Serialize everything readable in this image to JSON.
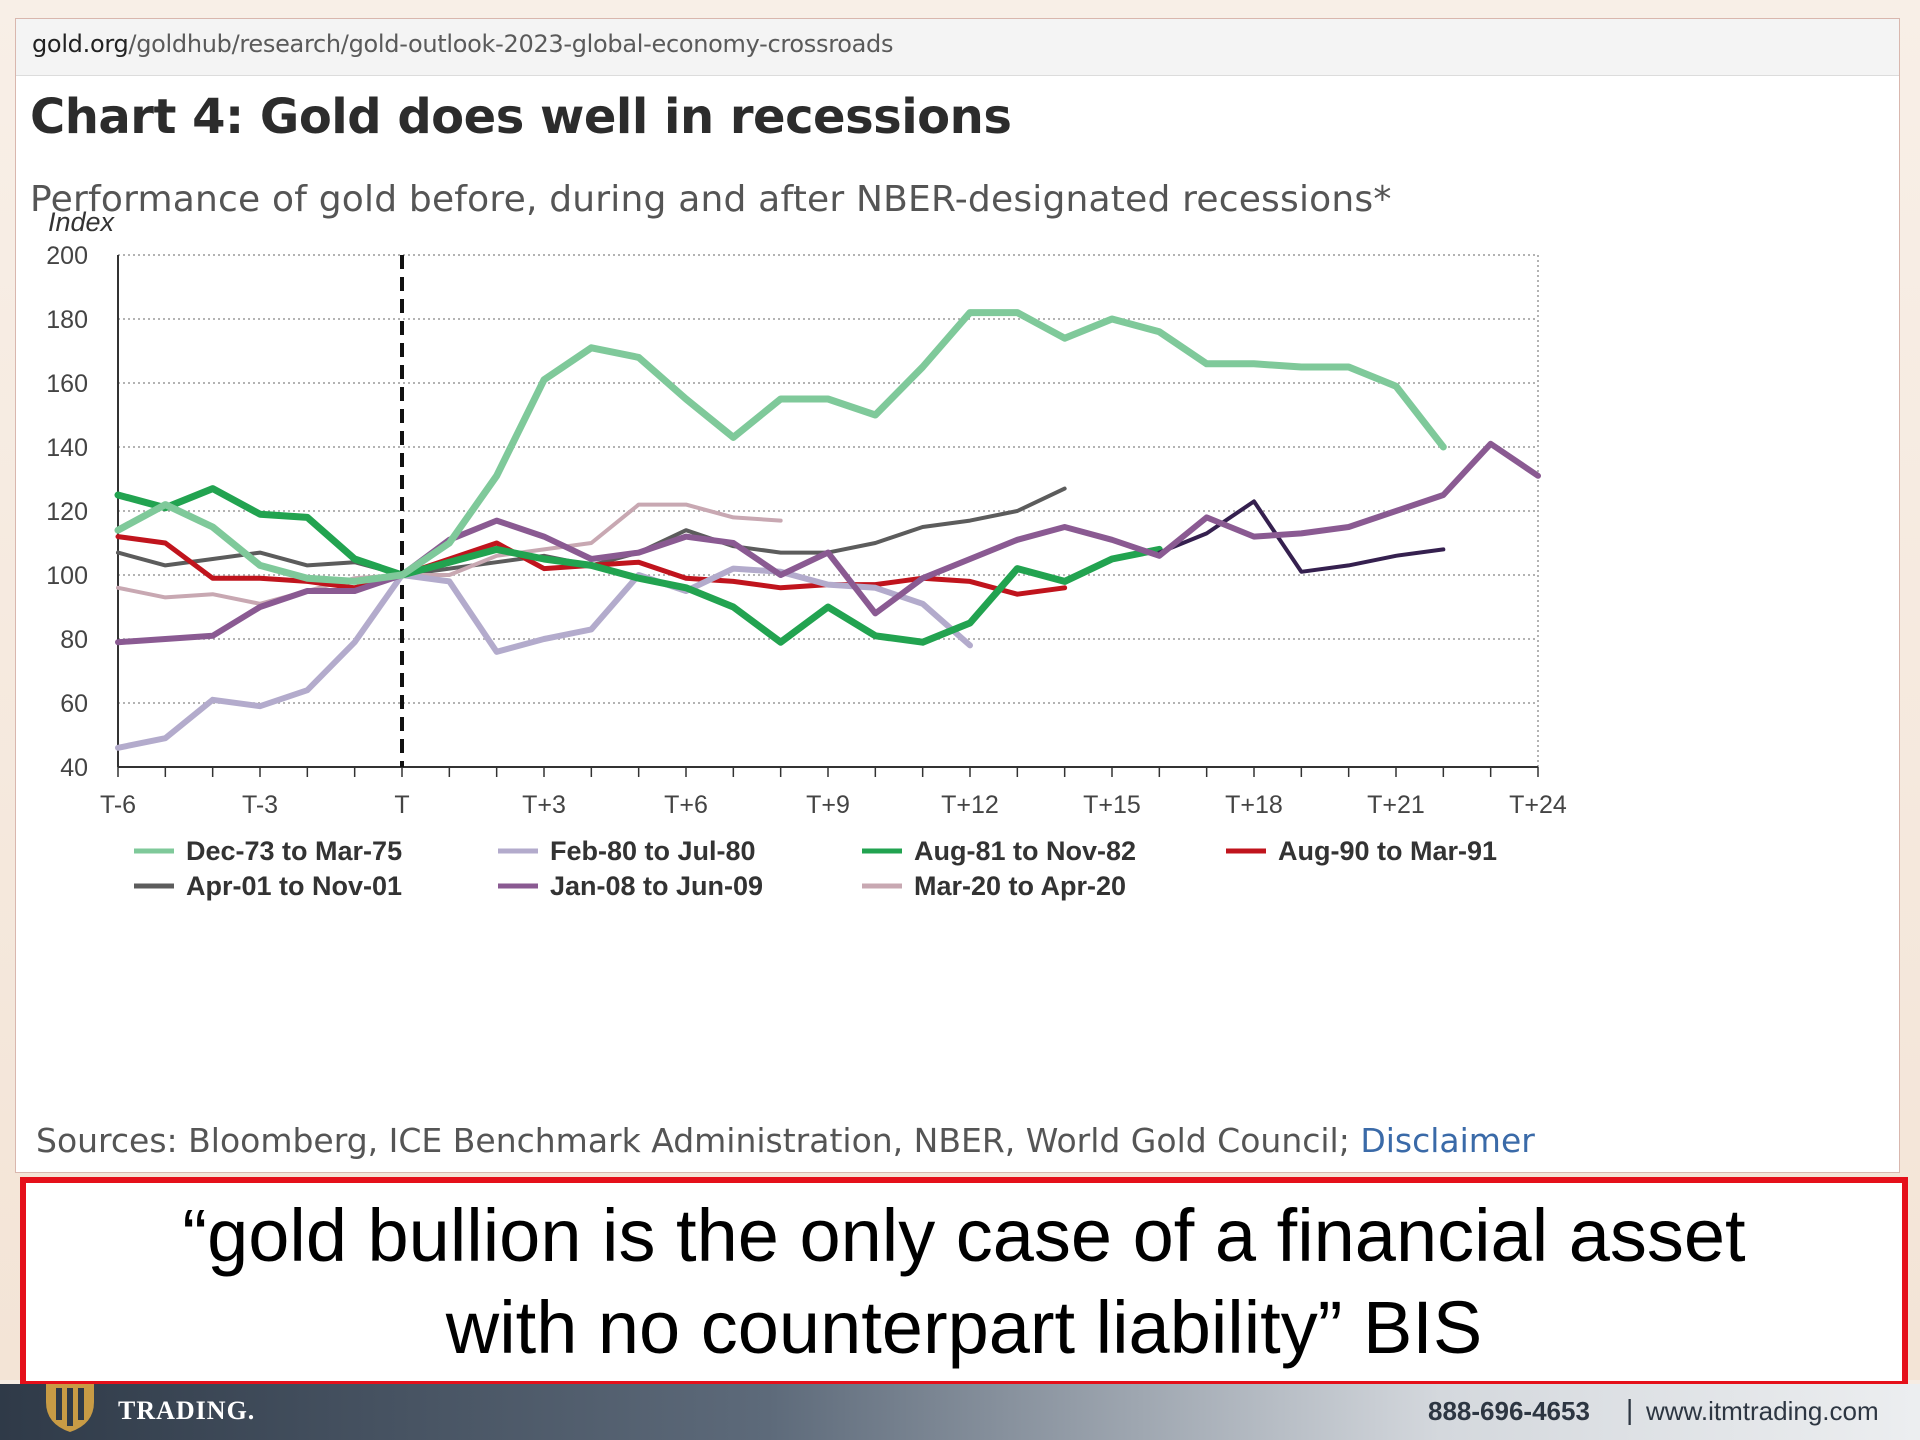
{
  "url": {
    "domain": "gold.org",
    "path": "/goldhub/research/gold-outlook-2023-global-economy-crossroads"
  },
  "chart_title": "Chart 4: Gold does well in recessions",
  "chart_subtitle": "Performance of gold before, during and after NBER-designated recessions*",
  "sources_text": "Sources: Bloomberg, ICE Benchmark Administration, NBER, World Gold Council; ",
  "disclaimer_link": "Disclaimer",
  "quote_line1": "“gold bullion is the only case of a financial asset",
  "quote_line2": "with no counterpart liability” BIS",
  "footer": {
    "logo_text": "TRADING.",
    "phone": "888-696-4653",
    "separator": "|",
    "website": "www.itmtrading.com"
  },
  "chart_data": {
    "type": "line",
    "ylabel": "Index",
    "ylim": [
      40,
      200
    ],
    "yticks": [
      200,
      180,
      160,
      140,
      120,
      100,
      80,
      60,
      40
    ],
    "xlim": [
      -6,
      24
    ],
    "xtick_labels": [
      "T-6",
      "T-3",
      "T",
      "T+3",
      "T+6",
      "T+9",
      "T+12",
      "T+15",
      "T+18",
      "T+21",
      "T+24"
    ],
    "xtick_values": [
      -6,
      -3,
      0,
      3,
      6,
      9,
      12,
      15,
      18,
      21,
      24
    ],
    "reference_line_x": 0,
    "grid": "horizontal dotted",
    "legend_position": "bottom",
    "series": [
      {
        "name": "Dec-73 to Mar-75",
        "color": "#7fc99a",
        "x": [
          -6,
          -5,
          -4,
          -3,
          -2,
          -1,
          0,
          1,
          2,
          3,
          4,
          5,
          6,
          7,
          8,
          9,
          10,
          11,
          12,
          13,
          14,
          15,
          16,
          17,
          18,
          19,
          20,
          21,
          22
        ],
        "values": [
          114,
          122,
          115,
          103,
          99,
          98,
          100,
          110,
          131,
          161,
          171,
          168,
          155,
          143,
          155,
          155,
          150,
          165,
          182,
          182,
          174,
          180,
          176,
          166,
          166,
          165,
          165,
          159,
          140
        ]
      },
      {
        "name": "Feb-80 to Jul-80",
        "color": "#b3abcc",
        "x": [
          -6,
          -5,
          -4,
          -3,
          -2,
          -1,
          0,
          1,
          2,
          3,
          4,
          5,
          6,
          7,
          8,
          9,
          10,
          11,
          12
        ],
        "values": [
          46,
          49,
          61,
          59,
          64,
          79,
          100,
          98,
          76,
          80,
          83,
          100,
          95,
          102,
          101,
          97,
          96,
          91,
          78
        ]
      },
      {
        "name": "Aug-81 to Nov-82",
        "color": "#22a350",
        "x": [
          -6,
          -5,
          -4,
          -3,
          -2,
          -1,
          0,
          1,
          2,
          3,
          4,
          5,
          6,
          7,
          8,
          9,
          10,
          11,
          12,
          13,
          14,
          15,
          16
        ],
        "values": [
          125,
          121,
          127,
          119,
          118,
          105,
          100,
          104,
          108,
          105,
          103,
          99,
          96,
          90,
          79,
          90,
          81,
          79,
          85,
          102,
          98,
          105,
          108
        ]
      },
      {
        "name": "Aug-90 to Mar-91",
        "color": "#c0141d",
        "x": [
          -6,
          -5,
          -4,
          -3,
          -2,
          -1,
          0,
          1,
          2,
          3,
          4,
          5,
          6,
          7,
          8,
          9,
          10,
          11,
          12,
          13,
          14
        ],
        "values": [
          112,
          110,
          99,
          99,
          98,
          96,
          100,
          105,
          110,
          102,
          103,
          104,
          99,
          98,
          96,
          97,
          97,
          99,
          98,
          94,
          96
        ]
      },
      {
        "name": "Apr-01 to Nov-01",
        "color": "#5c5c5c",
        "x": [
          -6,
          -5,
          -4,
          -3,
          -2,
          -1,
          0,
          1,
          2,
          3,
          4,
          5,
          6,
          7,
          8,
          9,
          10,
          11,
          12,
          13,
          14
        ],
        "values": [
          107,
          103,
          105,
          107,
          103,
          104,
          100,
          102,
          104,
          106,
          103,
          107,
          114,
          109,
          107,
          107,
          110,
          115,
          117,
          120,
          127
        ]
      },
      {
        "name": "Jan-08 to Jun-09",
        "color": "#8a5a92",
        "x": [
          -6,
          -5,
          -4,
          -3,
          -2,
          -1,
          0,
          1,
          2,
          3,
          4,
          5,
          6,
          7,
          8,
          9,
          10,
          11,
          12,
          13,
          14,
          15,
          16,
          17,
          18,
          19,
          20,
          21,
          22,
          23,
          24
        ],
        "values": [
          79,
          80,
          81,
          90,
          95,
          95,
          100,
          111,
          117,
          112,
          105,
          107,
          112,
          110,
          100,
          107,
          88,
          99,
          105,
          111,
          115,
          111,
          106,
          118,
          112,
          113,
          115,
          120,
          125,
          141,
          131
        ]
      },
      {
        "name": "Mar-20 to Apr-20",
        "color": "#c8a8b2",
        "x": [
          -6,
          -5,
          -4,
          -3,
          -2,
          -1,
          0,
          1,
          2,
          3,
          4,
          5,
          6,
          7,
          8
        ],
        "values": [
          96,
          93,
          94,
          91,
          95,
          99,
          100,
          100,
          106,
          108,
          110,
          122,
          122,
          118,
          117
        ]
      },
      {
        "name": "",
        "color": "#35204f",
        "x": [
          16,
          17,
          18,
          19,
          20,
          21,
          22
        ],
        "values": [
          107,
          113,
          123,
          101,
          103,
          106,
          108
        ]
      }
    ]
  }
}
